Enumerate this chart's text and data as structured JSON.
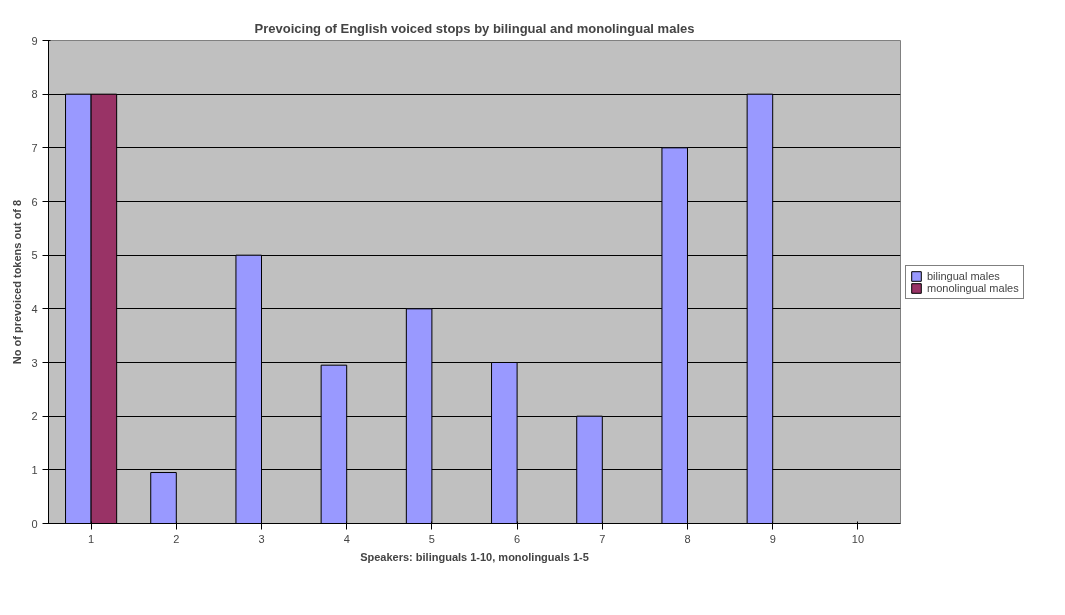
{
  "chart_data": {
    "type": "bar",
    "title": "Prevoicing of English voiced stops by bilingual and monolingual males",
    "xlabel": "Speakers: bilinguals 1-10, monolinguals 1-5",
    "ylabel": "No of prevoiced tokens out of 8",
    "categories": [
      "1",
      "2",
      "3",
      "4",
      "5",
      "6",
      "7",
      "8",
      "9",
      "10"
    ],
    "series": [
      {
        "name": "bilingual males",
        "color": "#9999ff",
        "values": [
          8,
          0.95,
          5,
          2.95,
          4,
          3,
          2,
          7,
          8,
          null
        ]
      },
      {
        "name": "monolingual males",
        "color": "#993366",
        "values": [
          8,
          null,
          null,
          null,
          null,
          null,
          null,
          null,
          null,
          null
        ]
      }
    ],
    "ylim": [
      0,
      9
    ],
    "yticks": [
      0,
      1,
      2,
      3,
      4,
      5,
      6,
      7,
      8,
      9
    ],
    "grid": "y",
    "legend": "right"
  }
}
